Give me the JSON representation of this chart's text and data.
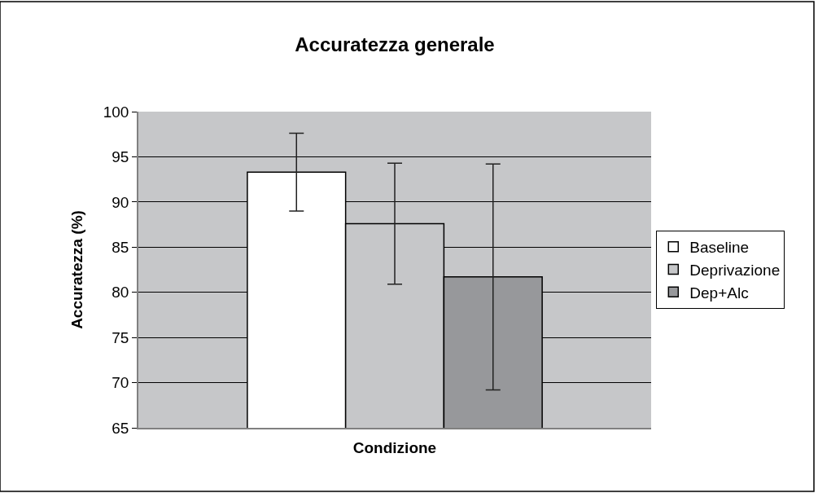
{
  "chart_data": {
    "type": "bar",
    "title": "Accuratezza generale",
    "xlabel": "Condizione",
    "ylabel": "Accuratezza (%)",
    "categories": [
      null
    ],
    "series": [
      {
        "name": "Baseline",
        "color": "#ffffff",
        "values": [
          93.3
        ],
        "errors": [
          4.3
        ]
      },
      {
        "name": "Deprivazione",
        "color": "#c6c7c9",
        "values": [
          87.6
        ],
        "errors": [
          6.7
        ]
      },
      {
        "name": "Dep+Alc",
        "color": "#97989b",
        "values": [
          81.7
        ],
        "errors": [
          12.5
        ]
      }
    ],
    "ylim": [
      65,
      100
    ],
    "yticks": [
      65,
      70,
      75,
      80,
      85,
      90,
      95,
      100
    ],
    "grid": "y",
    "legend": "right"
  }
}
